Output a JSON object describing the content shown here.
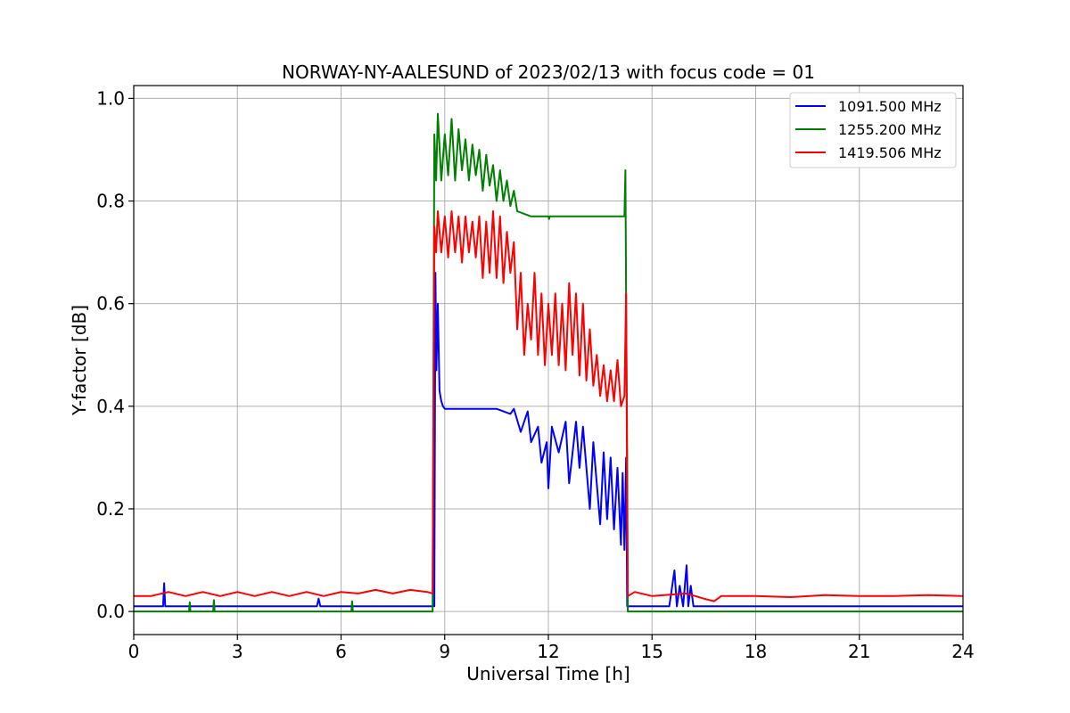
{
  "chart_data": {
    "type": "line",
    "title": "NORWAY-NY-AALESUND of 2023/02/13 with focus code = 01",
    "xlabel": "Universal Time [h]",
    "ylabel": "Y-factor [dB]",
    "xlim": [
      0,
      24
    ],
    "ylim": [
      -0.045,
      1.025
    ],
    "xticks": [
      0,
      3,
      6,
      9,
      12,
      15,
      18,
      21,
      24
    ],
    "xtick_labels": [
      "0",
      "3",
      "6",
      "9",
      "12",
      "15",
      "18",
      "21",
      "24"
    ],
    "yticks": [
      0.0,
      0.2,
      0.4,
      0.6,
      0.8,
      1.0
    ],
    "ytick_labels": [
      "0.0",
      "0.2",
      "0.4",
      "0.6",
      "0.8",
      "1.0"
    ],
    "grid": true,
    "legend_position": "top-right",
    "series": [
      {
        "name": "1091.500 MHz",
        "color": "#0000ff",
        "x": [
          0,
          0.85,
          0.88,
          0.91,
          0.94,
          5.3,
          5.35,
          5.4,
          8.6,
          8.7,
          8.73,
          8.76,
          8.8,
          8.85,
          8.9,
          8.95,
          9.0,
          10.5,
          10.9,
          11.0,
          11.2,
          11.4,
          11.5,
          11.7,
          11.8,
          11.95,
          12.0,
          12.1,
          12.3,
          12.5,
          12.6,
          12.8,
          12.9,
          13.0,
          13.2,
          13.3,
          13.5,
          13.6,
          13.7,
          13.8,
          13.9,
          14.0,
          14.1,
          14.15,
          14.2,
          14.25,
          14.28,
          14.3,
          15.5,
          15.65,
          15.72,
          15.8,
          15.9,
          16.0,
          16.05,
          16.12,
          16.2,
          16.3,
          24
        ],
        "y": [
          0.01,
          0.01,
          0.055,
          0.01,
          0.01,
          0.01,
          0.025,
          0.01,
          0.01,
          0.01,
          0.66,
          0.47,
          0.6,
          0.43,
          0.41,
          0.4,
          0.395,
          0.395,
          0.385,
          0.395,
          0.35,
          0.39,
          0.33,
          0.36,
          0.29,
          0.33,
          0.24,
          0.36,
          0.31,
          0.37,
          0.25,
          0.37,
          0.28,
          0.36,
          0.2,
          0.33,
          0.17,
          0.31,
          0.18,
          0.3,
          0.16,
          0.28,
          0.13,
          0.27,
          0.12,
          0.3,
          0.01,
          0.01,
          0.01,
          0.08,
          0.01,
          0.05,
          0.01,
          0.09,
          0.01,
          0.05,
          0.01,
          0.01,
          0.01
        ]
      },
      {
        "name": "1255.200 MHz",
        "color": "#008000",
        "x": [
          0,
          1.6,
          1.62,
          1.64,
          2.3,
          2.32,
          2.34,
          6.3,
          6.32,
          6.34,
          8.65,
          8.7,
          8.75,
          8.8,
          8.9,
          9.0,
          9.1,
          9.2,
          9.3,
          9.4,
          9.5,
          9.6,
          9.7,
          9.8,
          9.9,
          10.0,
          10.1,
          10.2,
          10.3,
          10.4,
          10.5,
          10.6,
          10.7,
          10.8,
          10.9,
          11.0,
          11.1,
          11.3,
          11.5,
          12.0,
          12.02,
          12.04,
          14.2,
          14.23,
          14.25,
          14.28,
          14.3,
          24
        ],
        "y": [
          0.0,
          0.0,
          0.018,
          0.0,
          0.0,
          0.022,
          0.0,
          0.0,
          0.02,
          0.0,
          0.0,
          0.93,
          0.84,
          0.97,
          0.84,
          0.93,
          0.85,
          0.96,
          0.84,
          0.94,
          0.86,
          0.92,
          0.84,
          0.91,
          0.85,
          0.9,
          0.82,
          0.89,
          0.83,
          0.87,
          0.8,
          0.86,
          0.8,
          0.84,
          0.79,
          0.82,
          0.78,
          0.775,
          0.77,
          0.77,
          0.765,
          0.77,
          0.77,
          0.86,
          0.6,
          0.3,
          0.0,
          0.0
        ]
      },
      {
        "name": "1419.506 MHz",
        "color": "#ff0000",
        "x": [
          0,
          0.5,
          1.0,
          1.5,
          2.0,
          2.5,
          3.0,
          3.5,
          4.0,
          4.5,
          5.0,
          5.5,
          6.0,
          6.5,
          7.0,
          7.5,
          8.0,
          8.5,
          8.65,
          8.7,
          8.75,
          8.8,
          8.9,
          9.0,
          9.1,
          9.2,
          9.3,
          9.4,
          9.5,
          9.6,
          9.7,
          9.8,
          9.9,
          10.0,
          10.1,
          10.2,
          10.3,
          10.4,
          10.5,
          10.6,
          10.7,
          10.8,
          10.9,
          11.0,
          11.1,
          11.2,
          11.3,
          11.4,
          11.5,
          11.6,
          11.7,
          11.8,
          11.9,
          12.0,
          12.1,
          12.2,
          12.3,
          12.4,
          12.5,
          12.6,
          12.7,
          12.8,
          12.9,
          13.0,
          13.1,
          13.2,
          13.3,
          13.4,
          13.5,
          13.6,
          13.7,
          13.8,
          13.9,
          14.0,
          14.1,
          14.2,
          14.25,
          14.28,
          14.3,
          14.5,
          15.0,
          16.0,
          16.5,
          16.8,
          17.0,
          18.0,
          19.0,
          20.0,
          21.0,
          22.0,
          23.0,
          24
        ],
        "y": [
          0.03,
          0.03,
          0.038,
          0.03,
          0.038,
          0.03,
          0.038,
          0.03,
          0.038,
          0.03,
          0.038,
          0.03,
          0.038,
          0.035,
          0.042,
          0.035,
          0.042,
          0.038,
          0.035,
          0.75,
          0.7,
          0.78,
          0.7,
          0.77,
          0.69,
          0.78,
          0.7,
          0.77,
          0.68,
          0.77,
          0.7,
          0.76,
          0.69,
          0.77,
          0.65,
          0.76,
          0.66,
          0.78,
          0.65,
          0.77,
          0.64,
          0.74,
          0.66,
          0.72,
          0.55,
          0.66,
          0.5,
          0.6,
          0.53,
          0.66,
          0.5,
          0.62,
          0.48,
          0.6,
          0.5,
          0.62,
          0.48,
          0.6,
          0.47,
          0.64,
          0.5,
          0.62,
          0.46,
          0.6,
          0.45,
          0.55,
          0.44,
          0.5,
          0.42,
          0.48,
          0.41,
          0.47,
          0.41,
          0.49,
          0.4,
          0.42,
          0.62,
          0.2,
          0.03,
          0.038,
          0.03,
          0.035,
          0.025,
          0.02,
          0.03,
          0.03,
          0.028,
          0.032,
          0.03,
          0.03,
          0.032,
          0.03
        ]
      }
    ]
  }
}
